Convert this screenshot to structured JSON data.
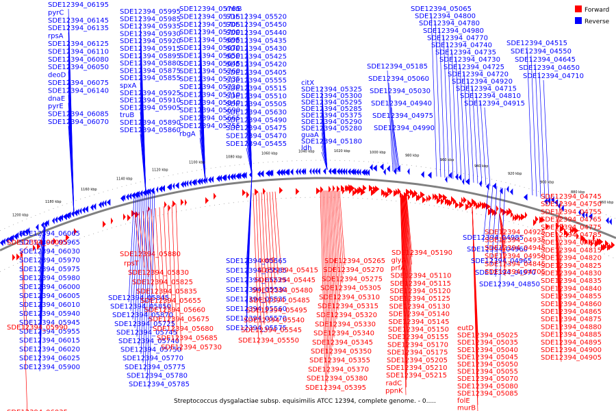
{
  "caption": "Streptococcus dysgalactiae subsp. equisimilis ATCC 12394, complete genome. - 0.....",
  "legend": [
    {
      "label": "Forward",
      "color": "#ff0000"
    },
    {
      "label": "Reverse",
      "color": "#0000ff"
    }
  ],
  "colors": {
    "forward": "#ff0000",
    "reverse": "#0000ff",
    "backbone": "#808080"
  },
  "ticks": [
    "1200 kbp",
    "1180 kbp",
    "1160 kbp",
    "1140 kbp",
    "1120 kbp",
    "1100 kbp",
    "1080 kbp",
    "1060 kbp",
    "1040 kbp",
    "1020 kbp",
    "1000 kbp",
    "980 kbp",
    "960 kbp",
    "940 kbp",
    "920 kbp",
    "900 kbp",
    "880 kbp",
    "860 kbp"
  ],
  "reverse_labels": [
    "SDE12394_06195",
    "pyrC",
    "SDE12394_06145",
    "SDE12394_06135",
    "rpsA",
    "SDE12394_06125",
    "SDE12394_06110",
    "SDE12394_06080",
    "SDE12394_06050",
    "deoD",
    "SDE12394_06075",
    "SDE12394_06140",
    "dnaE",
    "pyrE",
    "SDE12394_06085",
    "SDE12394_06070",
    "SDE12394_05995",
    "SDE12394_05985",
    "SDE12394_05935",
    "SDE12394_05930",
    "SDE12394_05920",
    "SDE12394_05915",
    "SDE12394_05895",
    "SDE12394_05880",
    "SDE12394_05875",
    "SDE12394_05855",
    "spxA",
    "SDE12394_05925",
    "SDE12394_05910",
    "SDE12394_05905",
    "truB",
    "SDE12394_05890",
    "SDE12394_05860",
    "SDE12394_05765",
    "SDE12394_05715",
    "SDE12394_05705",
    "SDE12394_05700",
    "SDE12394_05695",
    "SDE12394_05670",
    "SDE12394_05650",
    "SDE12394_05645",
    "SDE12394_05760",
    "SDE12394_05735",
    "SDE12394_05720",
    "SDE12394_05710",
    "SDE12394_05840",
    "SDE12394_05690",
    "SDE12394_05665",
    "SDE12394_05755",
    "rbgA",
    "rnhB",
    "SDE12394_05520",
    "SDE12394_05450",
    "SDE12394_05440",
    "SDE12394_05435",
    "SDE12394_05430",
    "SDE12394_05425",
    "SDE12394_05420",
    "SDE12394_05405",
    "SDE12394_05555",
    "SDE12394_05515",
    "SDE12394_05510",
    "SDE12394_05505",
    "SDE12394_05630",
    "SDE12394_05490",
    "SDE12394_05475",
    "SDE12394_05470",
    "SDE12394_05455",
    "citX",
    "SDE12394_05325",
    "SDE12394_05300",
    "SDE12394_05295",
    "SDE12394_05285",
    "SDE12394_05375",
    "SDE12394_05290",
    "SDE12394_05280",
    "guaA",
    "SDE12394_05180",
    "ldh",
    "SDE12394_05185",
    "SDE12394_05060",
    "SDE12394_05030",
    "SDE12394_04940",
    "SDE12394_04975",
    "SDE12394_04990",
    "SDE12394_05065",
    "SDE12394_04800",
    "SDE12394_04780",
    "SDE12394_04980",
    "SDE12394_04770",
    "SDE12394_04740",
    "SDE12394_04735",
    "SDE12394_04730",
    "SDE12394_04725",
    "SDE12394_04720",
    "SDE12394_04920",
    "SDE12394_04715",
    "SDE12394_04810",
    "SDE12394_04915",
    "SDE12394_04515",
    "SDE12394_04550",
    "SDE12394_04645",
    "SDE12394_04650",
    "SDE12394_04710"
  ],
  "lower_reverse_labels": [
    "SDE12394_06065",
    "SDE12394_05965",
    "SDE12394_06030",
    "SDE12394_05970",
    "SDE12394_05975",
    "SDE12394_05980",
    "SDE12394_06000",
    "SDE12394_06005",
    "SDE12394_06010",
    "SDE12394_05940",
    "SDE12394_05945",
    "SDE12394_05955",
    "SDE12394_06015",
    "SDE12394_06020",
    "SDE12394_06025",
    "SDE12394_05900",
    "SDE12394_05845",
    "SDE12394_05850",
    "SDE12394_05870",
    "SDE12394_05725",
    "SDE12394_05745",
    "SDE12394_05740",
    "SDE12394_05750",
    "SDE12394_05770",
    "SDE12394_05775",
    "SDE12394_05780",
    "SDE12394_05785",
    "SDE12394_05565",
    "SDE12394_05585",
    "SDE12394_05525",
    "SDE12394_05530",
    "SDE12394_05535",
    "SDE12394_05560",
    "SDE12394_05570",
    "SDE12394_05575",
    "SDE12394_04985",
    "SDE12394_04960",
    "SDE12394_04965",
    "SDE12394_04970",
    "SDE12394_04850"
  ],
  "forward_labels": [
    "SDE12394_06095",
    "SDE12394_05990",
    "SDE12394_06035",
    "SDE12394_05880",
    "rpsT",
    "SDE12394_05830",
    "SDE12394_05825",
    "SDE12394_05835",
    "SDE12394_05655",
    "SDE12394_05660",
    "SDE12394_05675",
    "SDE12394_05680",
    "SDE12394_05685",
    "SDE12394_05730",
    "xerS",
    "SDE12394_05415",
    "SDE12394_05445",
    "SDE12394_05480",
    "SDE12394_05485",
    "SDE12394_05495",
    "SDE12394_05540",
    "SDE12394_05545",
    "SDE12394_05550",
    "SDE12394_05265",
    "SDE12394_05270",
    "SDE12394_05275",
    "SDE12394_05305",
    "SDE12394_05310",
    "SDE12394_05315",
    "SDE12394_05320",
    "SDE12394_05330",
    "SDE12394_05340",
    "SDE12394_05345",
    "SDE12394_05350",
    "SDE12394_05355",
    "SDE12394_05370",
    "SDE12394_05380",
    "SDE12394_05395",
    "SDE12394_05190",
    "glyA",
    "prfA",
    "SDE12394_05110",
    "SDE12394_05115",
    "SDE12394_05120",
    "SDE12394_05125",
    "SDE12394_05130",
    "SDE12394_05140",
    "SDE12394_05145",
    "SDE12394_05150",
    "SDE12394_05155",
    "SDE12394_05170",
    "SDE12394_05175",
    "SDE12394_05205",
    "SDE12394_05210",
    "SDE12394_05215",
    "radC",
    "ppnK",
    "eutD",
    "SDE12394_05025",
    "SDE12394_05035",
    "SDE12394_05040",
    "SDE12394_05045",
    "SDE12394_05050",
    "SDE12394_05055",
    "SDE12394_05070",
    "SDE12394_05080",
    "SDE12394_05085",
    "folE",
    "murB",
    "SDE12394_04925",
    "SDE12394_04935",
    "SDE12394_04945",
    "SDE12394_04950",
    "SDE12394_04845",
    "SDE12394_04705",
    "SDE12394_04745",
    "SDE12394_04750",
    "SDE12394_04755",
    "SDE12394_04765",
    "SDE12394_04775",
    "SDE12394_04785",
    "SDE12394_04805",
    "SDE12394_04815",
    "SDE12394_04820",
    "SDE12394_04825",
    "SDE12394_04830",
    "SDE12394_04835",
    "SDE12394_04840",
    "SDE12394_04855",
    "SDE12394_04860",
    "SDE12394_04865",
    "SDE12394_04875",
    "SDE12394_04880",
    "SDE12394_04885",
    "SDE12394_04895",
    "SDE12394_04900",
    "SDE12394_04905"
  ]
}
